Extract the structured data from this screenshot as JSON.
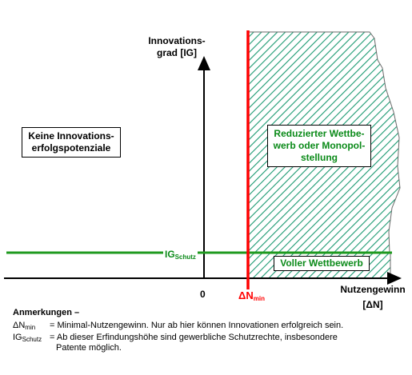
{
  "axes": {
    "y_label_line1": "Innovations-",
    "y_label_line2": "grad [IG]",
    "x_label_line1": "Nutzengewinn",
    "x_label_line2": "[ΔN]",
    "origin": "0"
  },
  "regions": {
    "no_potential_line1": "Keine Innovations-",
    "no_potential_line2": "erfolgspotenziale",
    "reduced_line1": "Reduzierter Wettbe-",
    "reduced_line2": "werb oder Monopol-",
    "reduced_line3": "stellung",
    "full_competition": "Voller Wettbewerb"
  },
  "thresholds": {
    "ig_main": "IG",
    "ig_sub": "Schutz",
    "dn_main": "ΔN",
    "dn_sub": "min"
  },
  "notes": {
    "heading": "Anmerkungen –",
    "dn_key_main": "ΔN",
    "dn_key_sub": "min",
    "dn_text": "= Minimal-Nutzengewinn. Nur ab hier können Innovationen erfolgreich sein.",
    "ig_key_main": "IG",
    "ig_key_sub": "Schutz",
    "ig_text_line1": "= Ab dieser Erfindungshöhe sind gewerbliche Schutzrechte, insbesondere",
    "ig_text_line2": "Patente möglich."
  },
  "colors": {
    "hatch": "#1c9a72",
    "green_line": "#1f9a1f",
    "red_line": "#ff0000",
    "label_green": "#0a8a18"
  }
}
